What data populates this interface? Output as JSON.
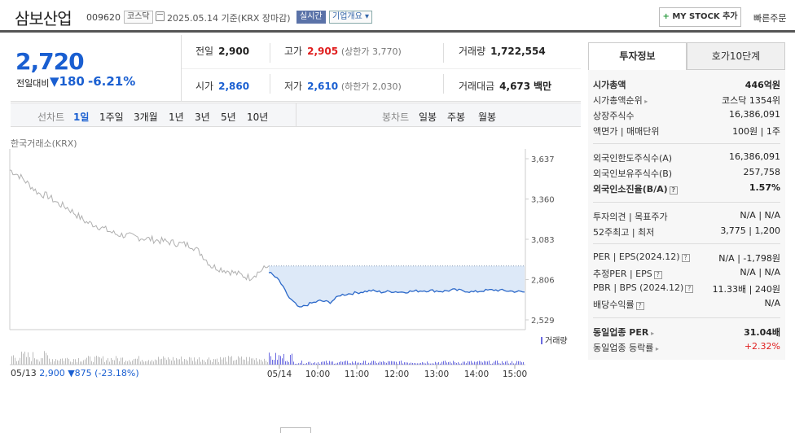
{
  "header": {
    "stock_name": "삼보산업",
    "stock_code": "009620",
    "market_badge": "코스닥",
    "date_text": "2025.05.14  기준(KRX 장마감)",
    "realtime_badge": "실시간",
    "company_info": "기업개요",
    "mystock_button": "MY STOCK 추가",
    "quick_order": "빠른주문"
  },
  "price": {
    "current": "2,720",
    "prev_diff_label": "전일대비",
    "diff": "▼180",
    "rate": "-6.21%"
  },
  "summary": {
    "prev_close_label": "전일",
    "prev_close": "2,900",
    "high_label": "고가",
    "high": "2,905",
    "upper_limit": "(상한가 3,770)",
    "volume_label": "거래량",
    "volume": "1,722,554",
    "open_label": "시가",
    "open": "2,860",
    "low_label": "저가",
    "low": "2,610",
    "lower_limit": "(하한가 2,030)",
    "amount_label": "거래대금",
    "amount": "4,673",
    "amount_unit": "백만"
  },
  "period_bar": {
    "line_chart": "선차트",
    "periods": [
      "1일",
      "1주일",
      "3개월",
      "1년",
      "3년",
      "5년",
      "10년"
    ],
    "selected": "1일",
    "candle_chart": "봉차트",
    "candle_periods": [
      "일봉",
      "주봉",
      "월봉"
    ]
  },
  "chart_data": {
    "type": "line",
    "source": "한국거래소(KRX)",
    "y_ticks": [
      "3,637",
      "3,360",
      "3,083",
      "2,806",
      "2,529"
    ],
    "ylim": [
      2529,
      3637
    ],
    "x_ticks": [
      "05/14",
      "10:00",
      "11:00",
      "12:00",
      "13:00",
      "14:00",
      "15:00"
    ],
    "prev_close": 2900,
    "series": [
      {
        "values_prev_day": [
          3560,
          3520,
          3460,
          3400,
          3380,
          3330,
          3300,
          3250,
          3200,
          3180,
          3150,
          3120,
          3110,
          3100,
          3090,
          3080,
          3070,
          3060,
          3050,
          3040,
          2980,
          2900,
          2880,
          2860,
          2840,
          2820,
          2860,
          2900
        ],
        "values_today": [
          2860,
          2800,
          2680,
          2610,
          2640,
          2660,
          2650,
          2700,
          2710,
          2720,
          2730,
          2720,
          2725,
          2720,
          2725,
          2730,
          2730,
          2725,
          2735,
          2730,
          2720,
          2730,
          2735,
          2730,
          2725,
          2720
        ]
      }
    ],
    "volume_label": "거래량",
    "colors": {
      "prev": "#b0b0b0",
      "today": "#2b68c9",
      "fill": "#dde9f8",
      "volume": "#6b6be0"
    }
  },
  "bottom": {
    "prev_date": "05/13",
    "prev_price": "2,900",
    "prev_change": "▼875 (-23.18%)"
  },
  "side": {
    "tab_active": "투자정보",
    "tab_other": "호가10단계",
    "rows1": [
      {
        "k": "시가총액",
        "v": "446억원"
      },
      {
        "k": "시가총액순위",
        "v": "코스닥 1354위"
      },
      {
        "k": "상장주식수",
        "v": "16,386,091"
      },
      {
        "k": "액면가 | 매매단위",
        "v": "100원 | 1주"
      }
    ],
    "rows2": [
      {
        "k": "외국인한도주식수(A)",
        "v": "16,386,091"
      },
      {
        "k": "외국인보유주식수(B)",
        "v": "257,758"
      },
      {
        "k": "외국인소진율(B/A)",
        "v": "1.57%"
      }
    ],
    "rows3": [
      {
        "k": "투자의견 | 목표주가",
        "v": "N/A | N/A"
      },
      {
        "k": "52주최고 | 최저",
        "v": "3,775 | 1,200"
      }
    ],
    "rows4": [
      {
        "k": "PER | EPS(2024.12)",
        "v": "N/A | -1,798원"
      },
      {
        "k": "추정PER | EPS",
        "v": "N/A | N/A"
      },
      {
        "k": "PBR | BPS (2024.12)",
        "v": "11.33배 | 240원"
      },
      {
        "k": "배당수익률",
        "v": "N/A"
      }
    ],
    "rows5": [
      {
        "k": "동일업종 PER",
        "v": "31.04배"
      },
      {
        "k": "동일업종 등락률",
        "v": "+2.32%"
      }
    ]
  }
}
